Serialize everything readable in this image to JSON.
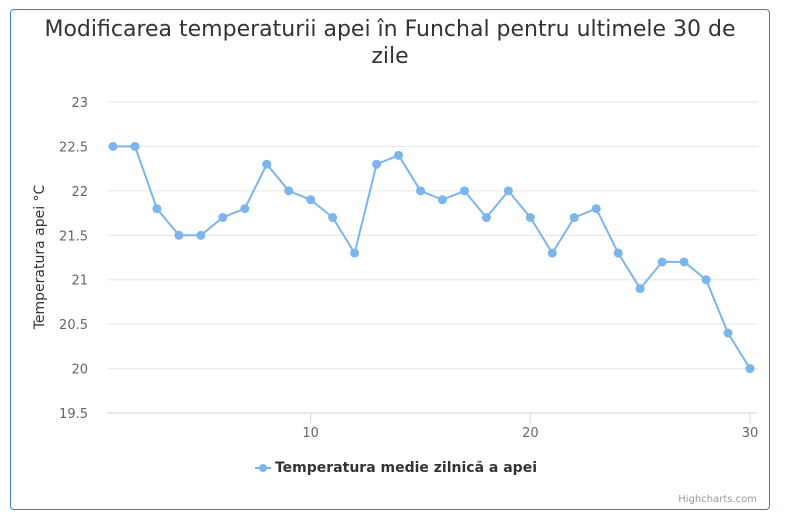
{
  "chart_data": {
    "type": "line",
    "title": "Modificarea temperaturii apei în Funchal pentru ultimele 30 de zile",
    "xlabel": "",
    "ylabel": "Temperatura apei °C",
    "xlim": [
      1,
      30
    ],
    "ylim": [
      19.5,
      23
    ],
    "yticks": [
      "19.5",
      "20",
      "20.5",
      "21",
      "21.5",
      "22",
      "22.5",
      "23"
    ],
    "xticks": [
      "10",
      "20",
      "30"
    ],
    "grid": true,
    "legend": "bottom-center",
    "series": [
      {
        "name": "Temperatura medie zilnică a apei",
        "color": "#7cb5ec",
        "x": [
          1,
          2,
          3,
          4,
          5,
          6,
          7,
          8,
          9,
          10,
          11,
          12,
          13,
          14,
          15,
          16,
          17,
          18,
          19,
          20,
          21,
          22,
          23,
          24,
          25,
          26,
          27,
          28,
          29,
          30
        ],
        "values": [
          22.5,
          22.5,
          21.8,
          21.5,
          21.5,
          21.7,
          21.8,
          22.3,
          22.0,
          21.9,
          21.7,
          21.3,
          22.3,
          22.4,
          22.0,
          21.9,
          22.0,
          21.7,
          22.0,
          21.7,
          21.3,
          21.7,
          21.8,
          21.3,
          20.9,
          21.2,
          21.2,
          21.0,
          20.4,
          20.0
        ]
      }
    ]
  },
  "credits": "Highcharts.com"
}
